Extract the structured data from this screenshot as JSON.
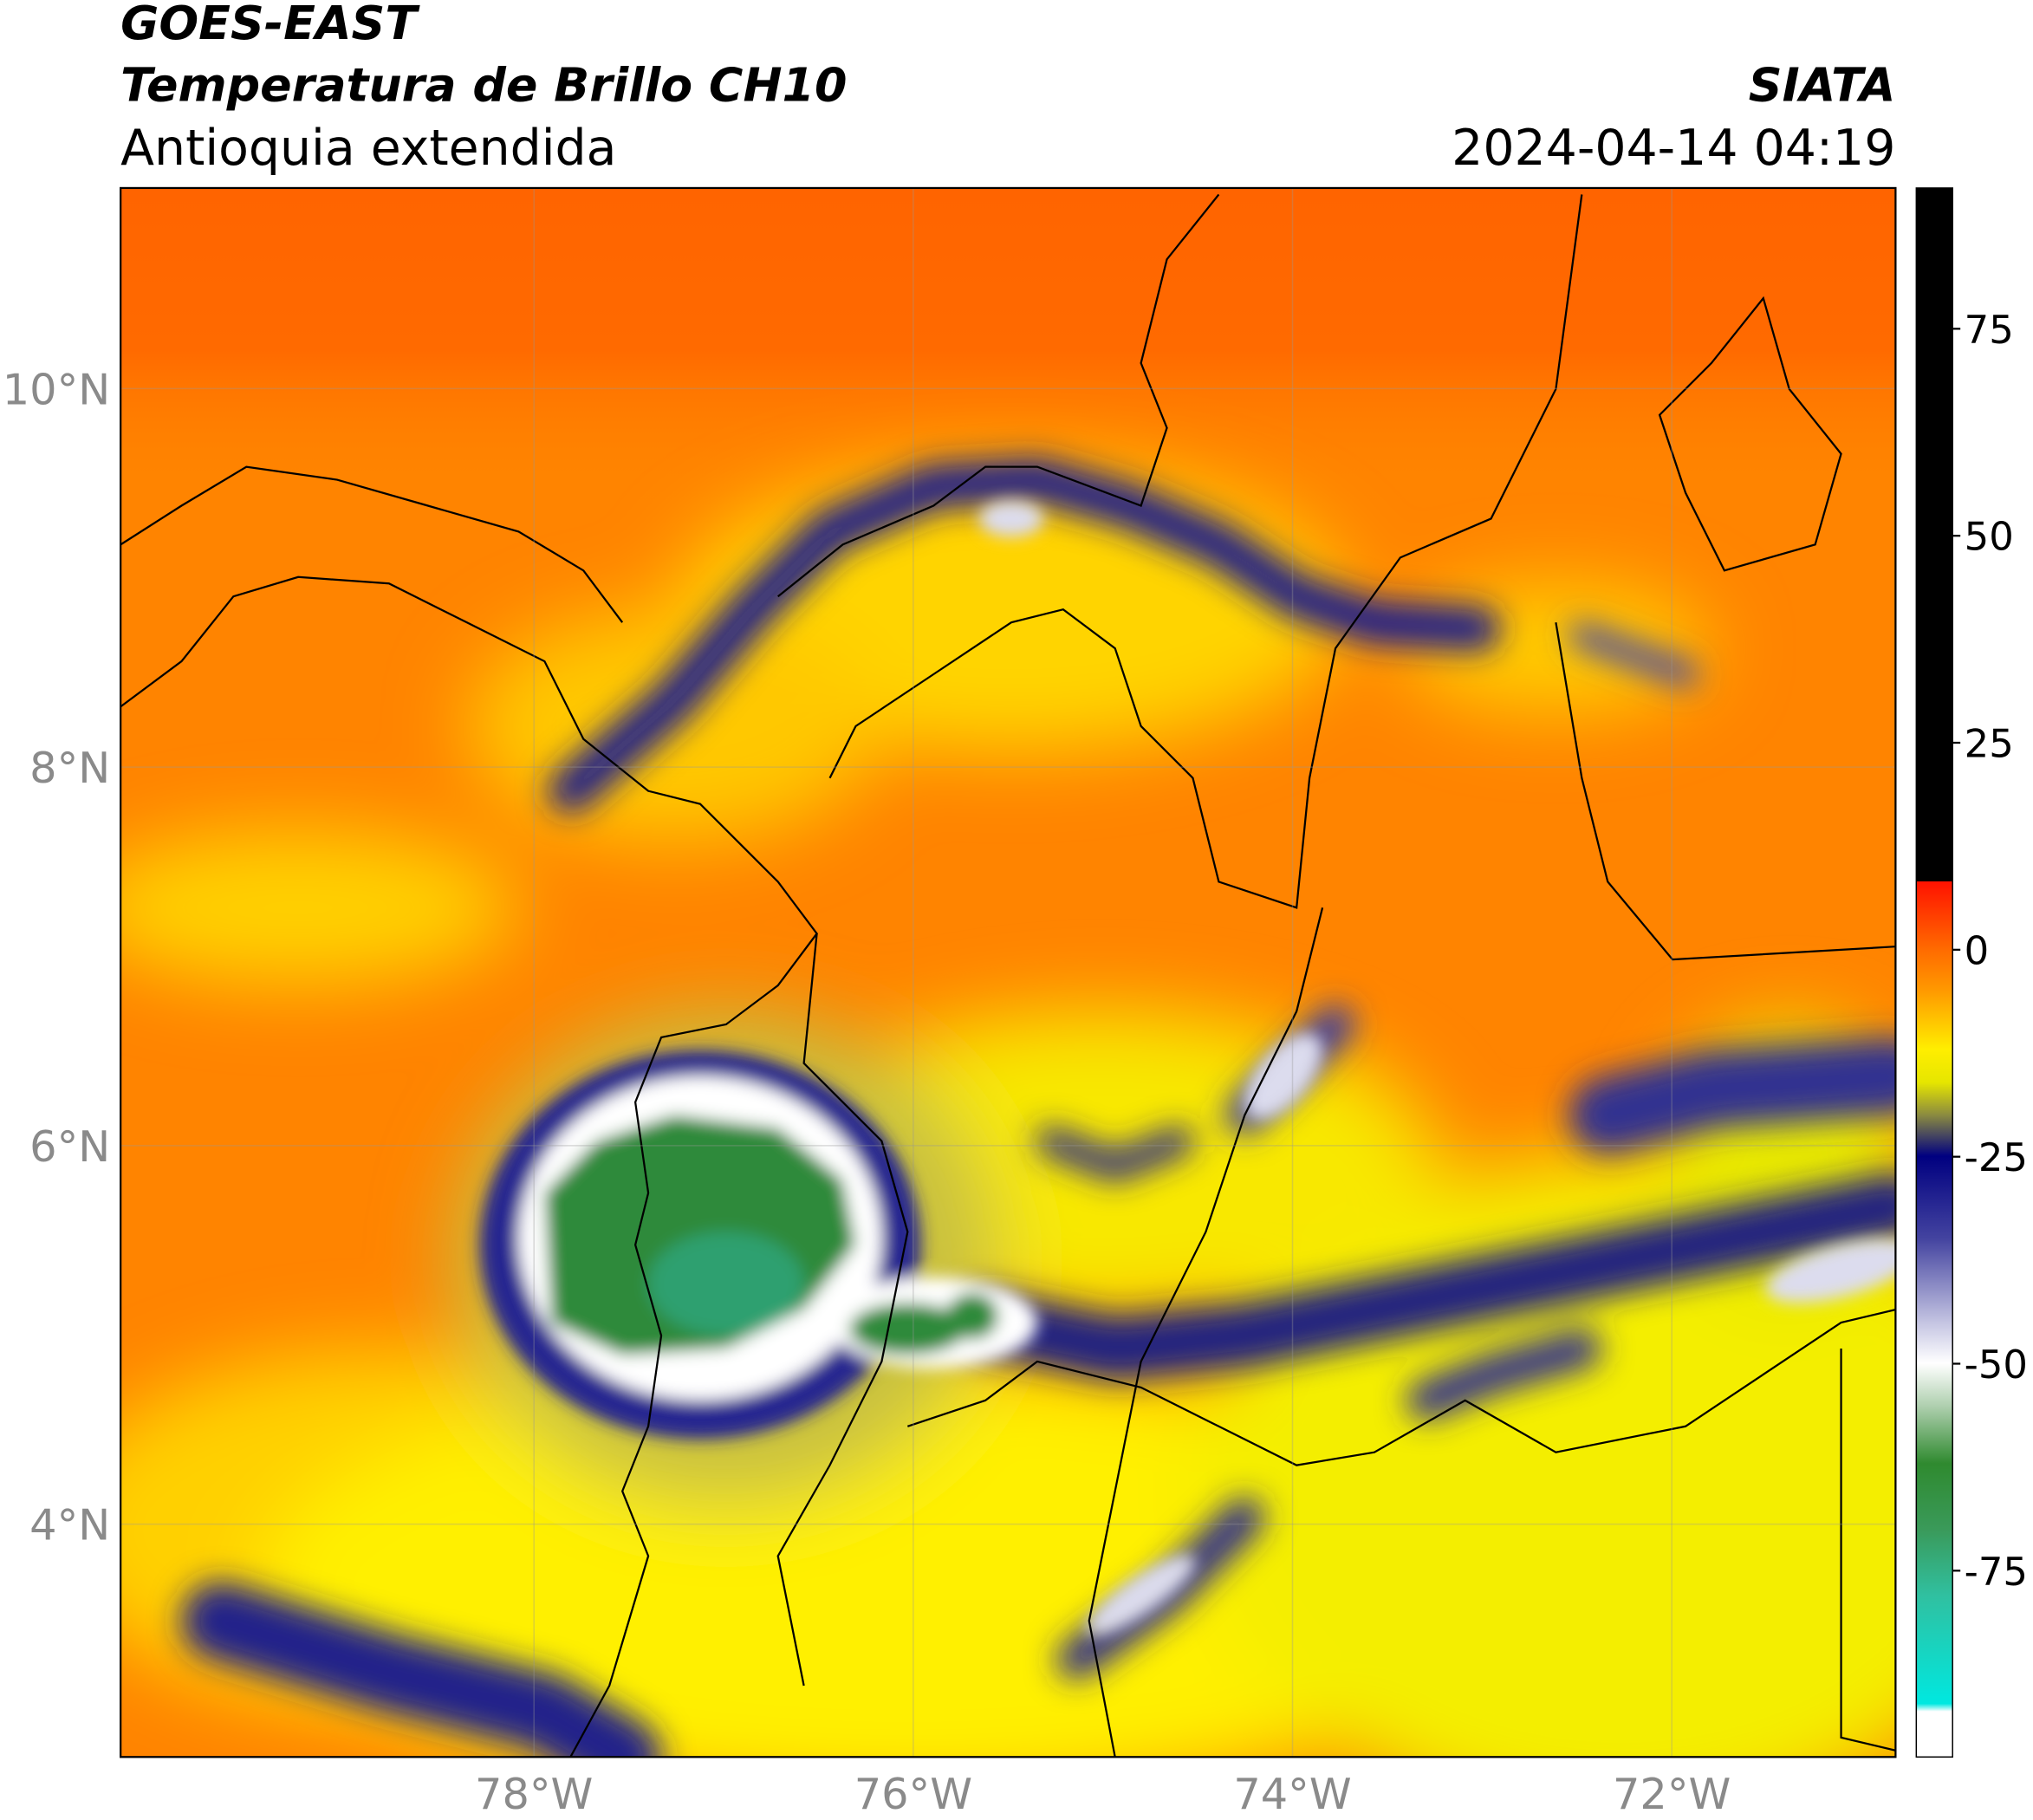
{
  "chart_data": {
    "type": "map",
    "title": "GOES-EAST",
    "subtitle": "Temperatura de Brillo CH10",
    "region": "Antioquia extendida",
    "source": "SIATA",
    "datetime": "2024-04-14 04:19",
    "xlim": [
      -80.18,
      -70.82
    ],
    "ylim": [
      2.77,
      11.06
    ],
    "xticks": [
      {
        "value": -78,
        "label": "78°W"
      },
      {
        "value": -76,
        "label": "76°W"
      },
      {
        "value": -74,
        "label": "74°W"
      },
      {
        "value": -72,
        "label": "72°W"
      }
    ],
    "yticks": [
      {
        "value": 4,
        "label": "4°N"
      },
      {
        "value": 6,
        "label": "6°N"
      },
      {
        "value": 8,
        "label": "8°N"
      },
      {
        "value": 10,
        "label": "10°N"
      }
    ],
    "grid": true,
    "colorbar": {
      "lim": [
        -97.5,
        92
      ],
      "ticks": [
        75,
        50,
        25,
        0,
        -25,
        -50,
        -75
      ]
    }
  }
}
